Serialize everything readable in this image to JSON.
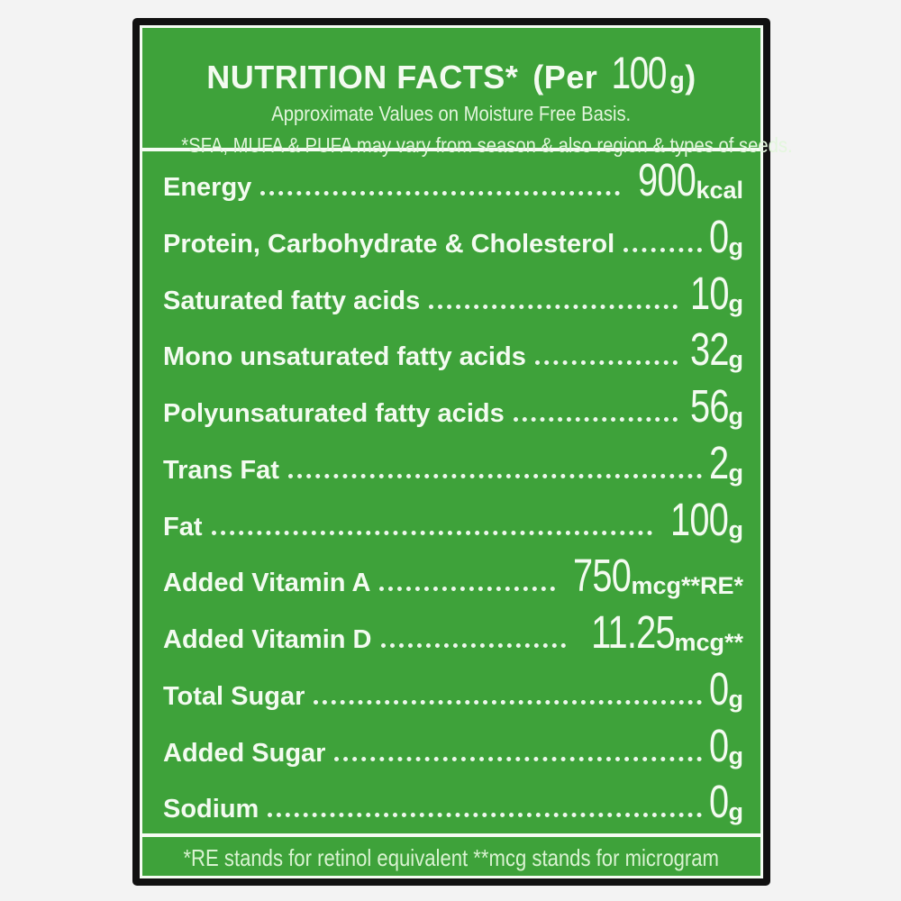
{
  "colors": {
    "page_bg": "#f3f3f3",
    "panel_green": "#3ea23a",
    "frame_black": "#111111",
    "inset_white": "#f5fcf3",
    "text_white": "#f3fbf0",
    "muted_text": "#d9f3d1"
  },
  "header": {
    "title": "NUTRITION FACTS*",
    "per_prefix": "(Per",
    "per_amount": "100",
    "per_unit": "g",
    "per_suffix": ")",
    "subtitle1": "Approximate Values on Moisture Free Basis.",
    "subtitle2": "*SFA, MUFA & PUFA may vary from season & also region & types of seeds."
  },
  "rows": [
    {
      "label": "Energy",
      "value": "900",
      "unit": "kcal"
    },
    {
      "label": "Protein, Carbohydrate & Cholesterol",
      "value": "0",
      "unit": "g"
    },
    {
      "label": "Saturated fatty acids",
      "value": "10",
      "unit": "g"
    },
    {
      "label": "Mono unsaturated fatty acids",
      "value": "32",
      "unit": "g"
    },
    {
      "label": "Polyunsaturated fatty acids",
      "value": "56",
      "unit": "g"
    },
    {
      "label": "Trans Fat",
      "value": "2",
      "unit": "g"
    },
    {
      "label": "Fat",
      "value": "100",
      "unit": "g"
    },
    {
      "label": "Added Vitamin A",
      "value": "750",
      "unit": "mcg**RE*"
    },
    {
      "label": "Added Vitamin D",
      "value": "11.25",
      "unit": "mcg**"
    },
    {
      "label": "Total Sugar",
      "value": "0",
      "unit": "g"
    },
    {
      "label": "Added Sugar",
      "value": "0",
      "unit": "g"
    },
    {
      "label": "Sodium",
      "value": "0",
      "unit": "g"
    }
  ],
  "footer": {
    "note": "*RE stands for retinol equivalent **mcg stands for microgram"
  }
}
